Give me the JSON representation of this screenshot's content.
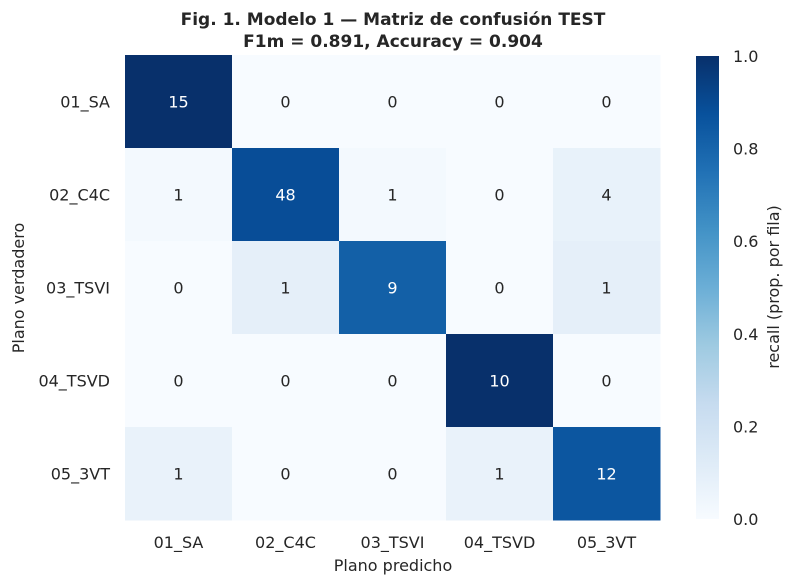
{
  "chart_data": {
    "type": "heatmap",
    "title_line1": "Fig. 1. Modelo 1 — Matriz de confusión TEST",
    "title_line2": "F1m = 0.891, Accuracy = 0.904",
    "xlabel": "Plano predicho",
    "ylabel": "Plano verdadero",
    "x_categories": [
      "01_SA",
      "02_C4C",
      "03_TSVI",
      "04_TSVD",
      "05_3VT"
    ],
    "y_categories": [
      "01_SA",
      "02_C4C",
      "03_TSVI",
      "04_TSVD",
      "05_3VT"
    ],
    "counts": [
      [
        15,
        0,
        0,
        0,
        0
      ],
      [
        1,
        48,
        1,
        0,
        4
      ],
      [
        0,
        1,
        9,
        0,
        1
      ],
      [
        0,
        0,
        0,
        10,
        0
      ],
      [
        1,
        0,
        0,
        1,
        12
      ]
    ],
    "colorbar": {
      "label": "recall (prop. por fila)",
      "range": [
        0.0,
        1.0
      ],
      "ticks": [
        "0.0",
        "0.2",
        "0.4",
        "0.6",
        "0.8",
        "1.0"
      ],
      "colormap": "Blues"
    },
    "grid": false
  }
}
